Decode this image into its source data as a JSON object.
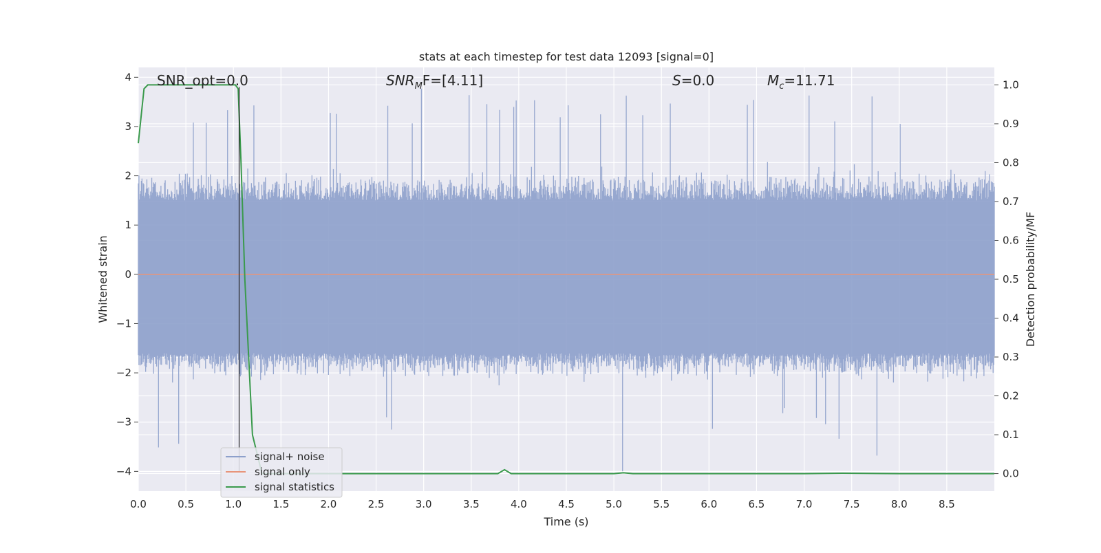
{
  "chart_data": {
    "type": "line",
    "title": "stats at each timestep for test data 12093 [signal=0]",
    "xlabel": "Time (s)",
    "ylabel": "Whitened strain",
    "ylabel_right": "Detection probability/MF",
    "xlim": [
      0.0,
      9.0
    ],
    "ylim": [
      -4.4,
      4.2
    ],
    "ylim_right": [
      -0.045,
      1.045
    ],
    "x_ticks": [
      "0.0",
      "0.5",
      "1.0",
      "1.5",
      "2.0",
      "2.5",
      "3.0",
      "3.5",
      "4.0",
      "4.5",
      "5.0",
      "5.5",
      "6.0",
      "6.5",
      "7.0",
      "7.5",
      "8.0",
      "8.5"
    ],
    "y_ticks": [
      "4",
      "3",
      "2",
      "1",
      "0",
      "−1",
      "−2",
      "−3",
      "−4"
    ],
    "y_ticks_right": [
      "1.0",
      "0.9",
      "0.8",
      "0.7",
      "0.6",
      "0.5",
      "0.4",
      "0.3",
      "0.2",
      "0.1",
      "0.0"
    ],
    "grid": true,
    "legend_position": "lower-left",
    "annotations": {
      "snr_opt": "SNR_opt=0.0",
      "snr_mf_prefix": "SNR",
      "snr_mf_sub": "M",
      "snr_mf_suffix": "F=[4.11]",
      "s_italic": "S",
      "s_rest": "=0.0",
      "mc_italic": "M",
      "mc_sub": "c",
      "mc_rest": "=11.71"
    },
    "series": [
      {
        "name": "signal+ noise",
        "color": "#8da0cb",
        "description_axis": "left",
        "noise_envelope": {
          "typical_max": 1.5,
          "typical_min": -1.6,
          "peak_max": 3.8,
          "peak_min": -4.0,
          "seed": 12093
        }
      },
      {
        "name": "signal only",
        "color": "#e8957a",
        "axis": "left",
        "x": [
          0.0,
          9.0
        ],
        "y": [
          0.0,
          0.0
        ]
      },
      {
        "name": "signal statistics",
        "color": "#3a9a4c",
        "axis": "right",
        "x": [
          0.0,
          0.06,
          0.1,
          0.2,
          0.3,
          0.6,
          0.8,
          1.0,
          1.02,
          1.05,
          1.08,
          1.12,
          1.2,
          1.3,
          2.0,
          3.0,
          3.7,
          3.78,
          3.85,
          3.92,
          4.0,
          5.0,
          5.1,
          5.2,
          6.0,
          7.0,
          7.4,
          8.0,
          9.0
        ],
        "y": [
          0.85,
          0.99,
          1.0,
          1.0,
          1.0,
          1.0,
          1.0,
          1.0,
          1.0,
          0.99,
          0.8,
          0.5,
          0.1,
          0.0,
          0.0,
          0.0,
          0.0,
          0.0,
          0.01,
          0.0,
          0.0,
          0.0,
          0.002,
          0.0,
          0.0,
          0.0,
          0.001,
          0.0,
          0.0
        ]
      }
    ],
    "vertical_marker": {
      "x": 1.06,
      "color": "#222222"
    }
  }
}
